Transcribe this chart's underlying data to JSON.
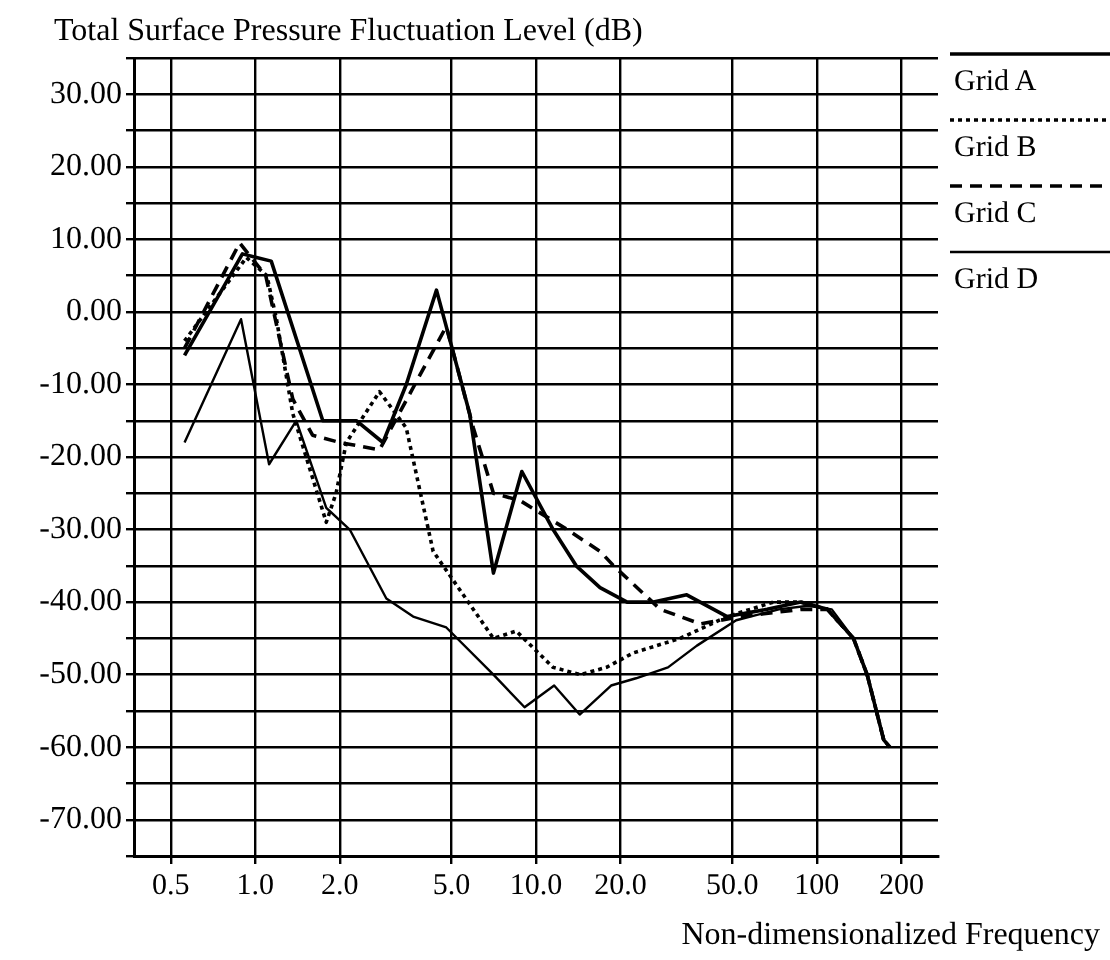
{
  "chart_data": {
    "type": "line",
    "title": "Total Surface Pressure Fluctuation Level (dB)",
    "xlabel": "Non-dimensionalized Frequency",
    "log": "x",
    "grid": true,
    "legend": "top right",
    "marker": "none",
    "xlim": [
      0.37,
      270
    ],
    "xticks": [
      {
        "value": 0.5,
        "label": "0.5"
      },
      {
        "value": 1,
        "label": "1.0"
      },
      {
        "value": 2,
        "label": "2.0"
      },
      {
        "value": 5,
        "label": "5.0"
      },
      {
        "value": 10,
        "label": "10.0"
      },
      {
        "value": 20,
        "label": "20.0"
      },
      {
        "value": 50,
        "label": "50.0"
      },
      100,
      200
    ],
    "ylim": [
      -75,
      35
    ],
    "yticks": [
      {
        "value": -75,
        "label": null
      },
      {
        "value": -70,
        "label": "-70.00"
      },
      {
        "value": -65,
        "label": null
      },
      {
        "value": -60,
        "label": "-60.00"
      },
      {
        "value": -55,
        "label": null
      },
      {
        "value": -50,
        "label": "-50.00"
      },
      {
        "value": -45,
        "label": null
      },
      {
        "value": -40,
        "label": "-40.00"
      },
      {
        "value": -35,
        "label": null
      },
      {
        "value": -30,
        "label": "-30.00"
      },
      {
        "value": -25,
        "label": null
      },
      {
        "value": -20,
        "label": "-20.00"
      },
      {
        "value": -15,
        "label": null
      },
      {
        "value": -10,
        "label": "-10.00"
      },
      {
        "value": -5,
        "label": null
      },
      {
        "value": 0,
        "label": "0.00"
      },
      {
        "value": 5,
        "label": null
      },
      {
        "value": 10,
        "label": "10.00"
      },
      {
        "value": 15,
        "label": null
      },
      {
        "value": 20,
        "label": "20.00"
      },
      {
        "value": 25,
        "label": null
      },
      {
        "value": 30,
        "label": "30.00"
      },
      {
        "value": 35,
        "label": null
      }
    ],
    "series": [
      {
        "name": "Grid A",
        "color": "#000000",
        "line_style": "solid",
        "x": [
          0.56,
          0.9,
          1.14,
          1.74,
          2.29,
          2.85,
          3.45,
          4.42,
          5.8,
          7.05,
          8.9,
          11.5,
          13.9,
          16.9,
          21.1,
          26.2,
          34.4,
          47.9,
          66.5,
          87.6,
          109,
          135,
          151,
          173,
          182
        ],
        "values": [
          -6,
          8,
          7,
          -15,
          -15,
          -18,
          -10,
          3,
          -14,
          -36,
          -22,
          -30,
          -35,
          -38,
          -40,
          -40,
          -39,
          -42,
          -41,
          -40,
          -41,
          -45,
          -50,
          -59,
          -60
        ]
      },
      {
        "name": "Grid B",
        "color": "#000000",
        "line_style": "dotted",
        "x": [
          0.56,
          0.93,
          1.1,
          1.19,
          1.36,
          1.79,
          1.94,
          2.11,
          2.77,
          3.45,
          4.3,
          7.05,
          8.5,
          11.5,
          14.4,
          17.8,
          22.2,
          32.6,
          47.9,
          70,
          87.6,
          109,
          135,
          151,
          173,
          182
        ],
        "values": [
          -4,
          7.5,
          5,
          -1,
          -14,
          -29,
          -25,
          -18,
          -11,
          -16,
          -33,
          -45,
          -44,
          -49,
          -50,
          -49,
          -47,
          -45,
          -42,
          -40,
          -40,
          -41,
          -45,
          -50,
          -59,
          -60
        ]
      },
      {
        "name": "Grid C",
        "color": "#000000",
        "line_style": "dashed",
        "x": [
          0.56,
          0.88,
          1.09,
          1.36,
          1.6,
          2,
          2.77,
          4.79,
          5.98,
          7.05,
          8.77,
          12.9,
          16.9,
          18.9,
          27.7,
          38.5,
          53.5,
          87.6,
          109,
          135,
          151,
          173,
          182
        ],
        "values": [
          -5,
          9.5,
          5,
          -12,
          -17,
          -18,
          -19,
          -2,
          -16,
          -25,
          -26,
          -30,
          -33,
          -35,
          -41,
          -43,
          -42,
          -41,
          -41,
          -45,
          -50,
          -59,
          -60
        ]
      },
      {
        "name": "Grid D",
        "color": "#000000",
        "line_style": "solid",
        "x": [
          0.56,
          0.89,
          1.12,
          1.4,
          1.79,
          2.17,
          2.93,
          3.65,
          4.79,
          7.05,
          9.1,
          11.6,
          14.3,
          18.5,
          22.7,
          29.5,
          37.4,
          51.6,
          73.2,
          93,
          113,
          135,
          151,
          173,
          182
        ],
        "values": [
          -18,
          -1,
          -21,
          -15,
          -27,
          -30,
          -39.5,
          -42,
          -43.5,
          -50,
          -54.5,
          -51.5,
          -55.5,
          -51.5,
          -50.5,
          -49,
          -46,
          -42.5,
          -41,
          -40.5,
          -41,
          -45,
          -50,
          -59,
          -60
        ]
      }
    ]
  }
}
